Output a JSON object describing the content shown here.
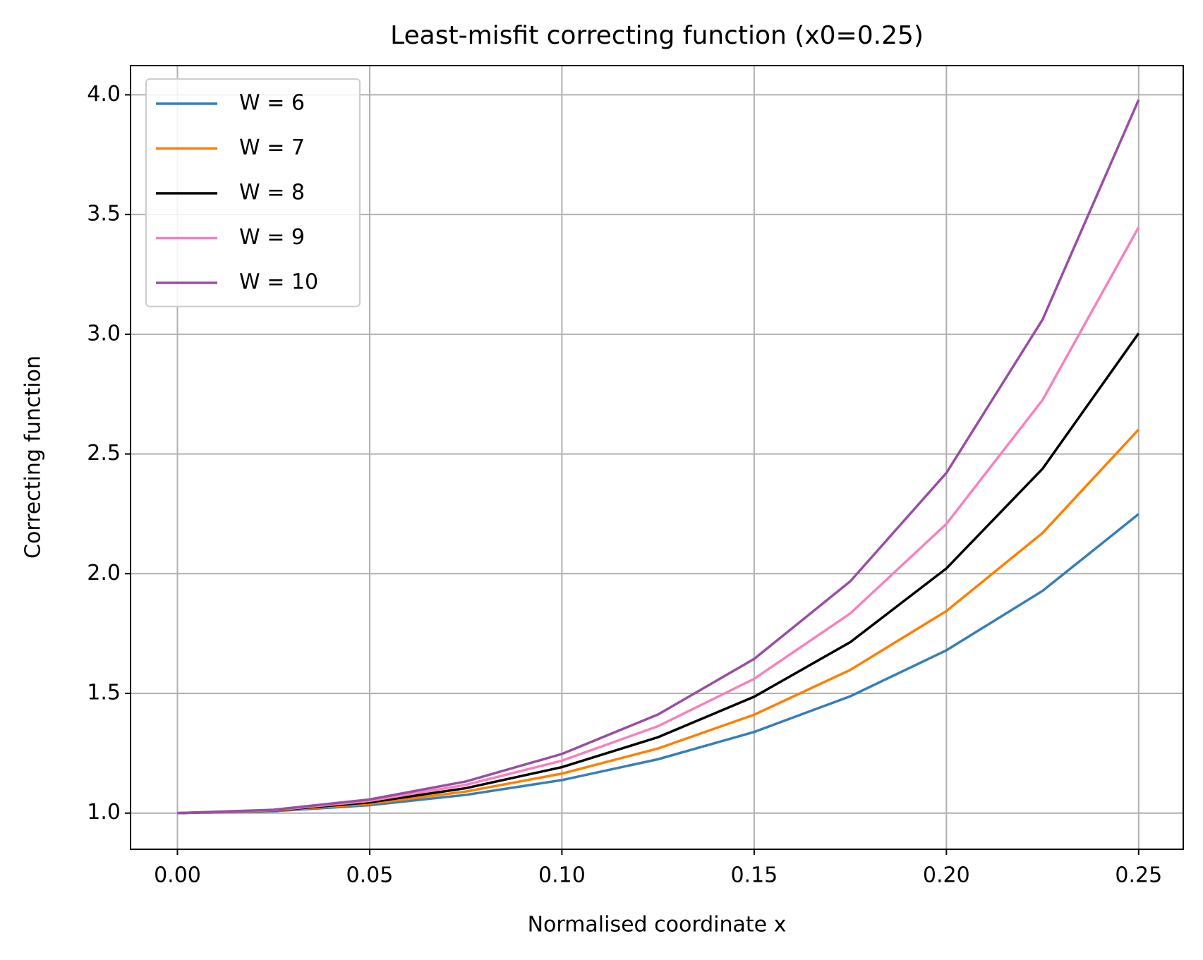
{
  "chart_data": {
    "type": "line",
    "title": "Least-misfit correcting function (x0=0.25)",
    "x_label": "Normalised coordinate x",
    "y_label": "Correcting function",
    "x": [
      0,
      0.025,
      0.05,
      0.075,
      0.1,
      0.125,
      0.15,
      0.175,
      0.2,
      0.225,
      0.25
    ],
    "series": [
      {
        "name": "W = 6",
        "color": "#377eb8",
        "values": [
          1,
          1.008,
          1.033,
          1.076,
          1.138,
          1.225,
          1.339,
          1.488,
          1.68,
          1.928,
          2.249
        ]
      },
      {
        "name": "W = 7",
        "color": "#ff7f00",
        "values": [
          1,
          1.01,
          1.039,
          1.09,
          1.165,
          1.27,
          1.411,
          1.598,
          1.844,
          2.17,
          2.602
        ]
      },
      {
        "name": "W = 8",
        "color": "#000000",
        "values": [
          1,
          1.011,
          1.045,
          1.104,
          1.192,
          1.317,
          1.486,
          1.714,
          2.022,
          2.438,
          3.004
        ]
      },
      {
        "name": "W = 9",
        "color": "#f781bf",
        "values": [
          1,
          1.012,
          1.051,
          1.118,
          1.219,
          1.363,
          1.561,
          1.834,
          2.208,
          2.725,
          3.447
        ]
      },
      {
        "name": "W = 10",
        "color": "#984ea3",
        "values": [
          1,
          1.014,
          1.057,
          1.132,
          1.247,
          1.412,
          1.644,
          1.968,
          2.421,
          3.061,
          3.979
        ]
      }
    ],
    "xlim": [
      -0.0122,
      0.2616
    ],
    "ylim": [
      0.849,
      4.122
    ],
    "xticks": [
      {
        "value": 0,
        "label": "0.00"
      },
      0.05,
      {
        "value": 0.1,
        "label": "0.10"
      },
      0.15,
      {
        "value": 0.2,
        "label": "0.20"
      },
      0.25
    ],
    "yticks": [
      {
        "value": 1,
        "label": "1.0"
      },
      1.5,
      {
        "value": 2,
        "label": "2.0"
      },
      2.5,
      {
        "value": 3,
        "label": "3.0"
      },
      3.5,
      {
        "value": 4,
        "label": "4.0"
      }
    ],
    "grid": true,
    "legend": "upper-left"
  }
}
